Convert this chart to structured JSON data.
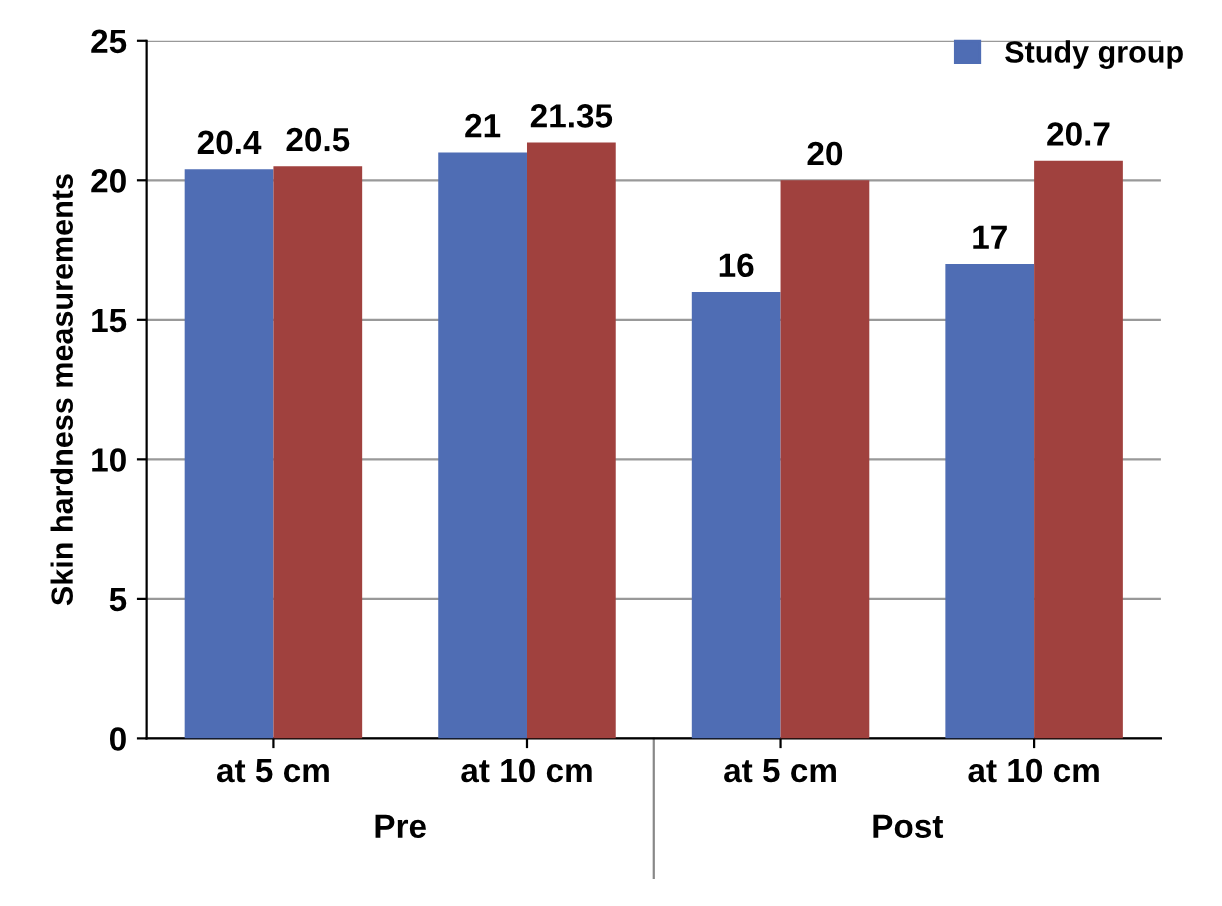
{
  "chart_data": {
    "type": "bar",
    "ylabel": "Skin hardness measurements",
    "categories": [
      "at 5 cm",
      "at 10 cm",
      "at 5 cm",
      "at 10 cm"
    ],
    "series": [
      {
        "name": "Study group",
        "color": "#4f6db4",
        "values": [
          20.4,
          21,
          16,
          17
        ]
      },
      {
        "color": "#a0413e",
        "values": [
          20.5,
          21.35,
          20,
          20.7
        ]
      }
    ],
    "annotations": [
      "Pre",
      "Post"
    ],
    "ylim": [
      0,
      25
    ],
    "yticks": [
      0,
      5,
      10,
      15,
      20,
      25
    ],
    "grid": "y",
    "legend": "top right",
    "data_labels": true
  }
}
